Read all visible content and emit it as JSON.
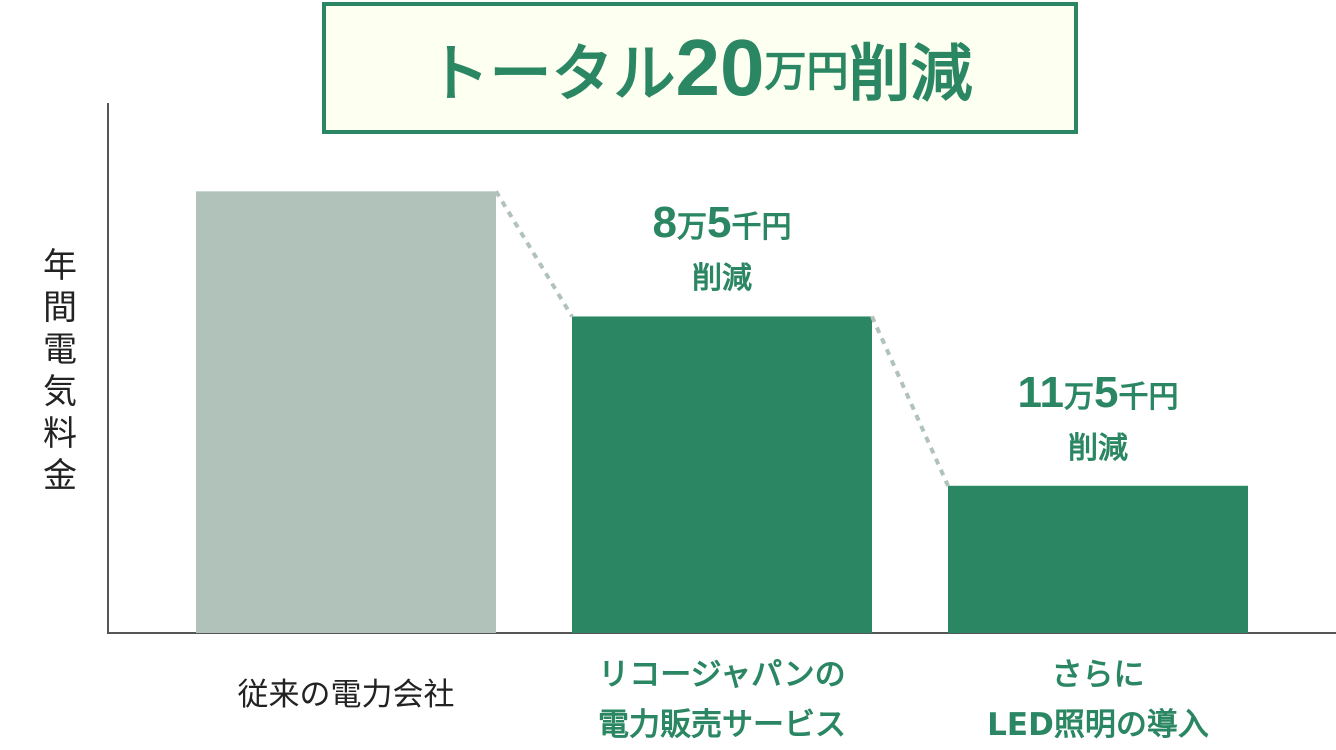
{
  "chart_data": {
    "type": "bar",
    "title": {
      "prefix": "トータル",
      "number": "20",
      "unit": "万円",
      "suffix": "削減"
    },
    "ylabel": "年間電気料金",
    "categories": [
      {
        "lines": [
          "従来の電力会社"
        ]
      },
      {
        "lines": [
          "リコージャパンの",
          "電力販売サービス"
        ]
      },
      {
        "lines": [
          "さらに",
          "LED照明の導入"
        ]
      }
    ],
    "values": [
      30,
      21.5,
      10
    ],
    "value_unit": "万円",
    "ylim": [
      0,
      36
    ],
    "grid": false,
    "bar_colors": [
      "#b0c2b9",
      "#2a8663",
      "#2a8663"
    ],
    "category_label_colors": [
      "#222222",
      "#2a8663",
      "#2a8663"
    ],
    "annotations": [
      {
        "bar": 1,
        "num1": "8",
        "u1": "万",
        "num2": "5",
        "u2": "千円",
        "line2": "削減"
      },
      {
        "bar": 2,
        "num1": "11",
        "u1": "万",
        "num2": "5",
        "u2": "千円",
        "line2": "削減"
      }
    ],
    "accent": "#2a8663",
    "title_background": "#fdfff0"
  }
}
